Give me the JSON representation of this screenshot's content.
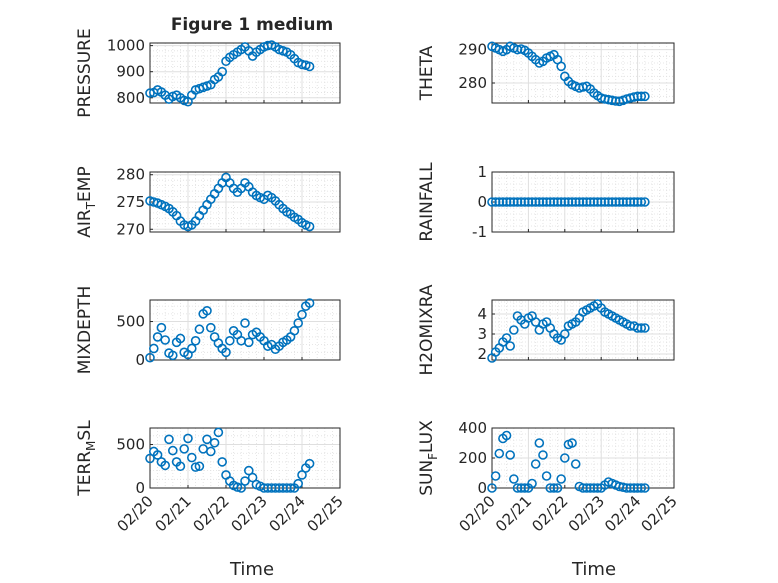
{
  "figure": {
    "title": "Figure 1 medium",
    "xlabel": "Time",
    "x_ticks": [
      "02/20",
      "02/21",
      "02/22",
      "02/23",
      "02/24",
      "02/25"
    ],
    "marker_color": "#0072BD",
    "grid_color": "#dfdfdf"
  },
  "chart_data": [
    {
      "type": "scatter",
      "ylabel": "PRESSURE",
      "ylim": [
        780,
        1010
      ],
      "y_ticks": [
        "800",
        "900",
        "1000"
      ],
      "y_tick_values": [
        800,
        900,
        1000
      ],
      "x": [
        20.0,
        20.1,
        20.2,
        20.3,
        20.4,
        20.5,
        20.6,
        20.7,
        20.8,
        20.9,
        21.0,
        21.1,
        21.2,
        21.3,
        21.4,
        21.5,
        21.6,
        21.7,
        21.8,
        21.9,
        22.0,
        22.1,
        22.2,
        22.3,
        22.4,
        22.5,
        22.6,
        22.7,
        22.8,
        22.9,
        23.0,
        23.1,
        23.2,
        23.3,
        23.4,
        23.5,
        23.6,
        23.7,
        23.8,
        23.9,
        24.0,
        24.1,
        24.2
      ],
      "y": [
        818,
        820,
        830,
        822,
        810,
        795,
        805,
        810,
        800,
        790,
        785,
        810,
        830,
        835,
        840,
        845,
        850,
        870,
        880,
        900,
        940,
        955,
        965,
        975,
        985,
        995,
        980,
        960,
        975,
        985,
        995,
        1000,
        1002,
        995,
        985,
        980,
        975,
        965,
        950,
        935,
        928,
        925,
        920
      ]
    },
    {
      "type": "scatter",
      "ylabel": "THETA",
      "ylim": [
        274,
        292
      ],
      "y_ticks": [
        "280",
        "290"
      ],
      "y_tick_values": [
        280,
        290
      ],
      "x": [
        20.0,
        20.1,
        20.2,
        20.3,
        20.4,
        20.5,
        20.6,
        20.7,
        20.8,
        20.9,
        21.0,
        21.1,
        21.2,
        21.3,
        21.4,
        21.5,
        21.6,
        21.7,
        21.8,
        21.9,
        22.0,
        22.1,
        22.2,
        22.3,
        22.4,
        22.5,
        22.6,
        22.7,
        22.8,
        22.9,
        23.0,
        23.1,
        23.2,
        23.3,
        23.4,
        23.5,
        23.6,
        23.7,
        23.8,
        23.9,
        24.0,
        24.1,
        24.2
      ],
      "y": [
        291,
        290.5,
        290,
        289.5,
        290,
        291,
        290.5,
        290,
        290.2,
        289.8,
        289,
        288,
        287,
        286,
        286.5,
        287.5,
        288,
        288.5,
        287,
        285,
        282,
        280.5,
        279.5,
        279,
        278.5,
        278.8,
        279,
        278.2,
        277,
        276.2,
        275.5,
        275.2,
        275,
        274.8,
        274.6,
        274.5,
        274.8,
        275.2,
        275.5,
        275.8,
        276,
        276,
        276
      ]
    },
    {
      "type": "scatter",
      "ylabel": "AIR_TEMP",
      "ylim": [
        269.5,
        280.5
      ],
      "y_ticks": [
        "270",
        "275",
        "280"
      ],
      "y_tick_values": [
        270,
        275,
        280
      ],
      "x": [
        20.0,
        20.1,
        20.2,
        20.3,
        20.4,
        20.5,
        20.6,
        20.7,
        20.8,
        20.9,
        21.0,
        21.1,
        21.2,
        21.3,
        21.4,
        21.5,
        21.6,
        21.7,
        21.8,
        21.9,
        22.0,
        22.1,
        22.2,
        22.3,
        22.4,
        22.5,
        22.6,
        22.7,
        22.8,
        22.9,
        23.0,
        23.1,
        23.2,
        23.3,
        23.4,
        23.5,
        23.6,
        23.7,
        23.8,
        23.9,
        24.0,
        24.1,
        24.2
      ],
      "y": [
        275.2,
        275,
        274.8,
        274.5,
        274.2,
        273.8,
        273.2,
        272.5,
        271.5,
        270.8,
        270.5,
        270.8,
        271.5,
        272.5,
        273.5,
        274.5,
        275.5,
        276.5,
        277.5,
        278.5,
        279.5,
        278.5,
        277.5,
        276.8,
        277.5,
        278.5,
        277.8,
        276.8,
        276.2,
        275.8,
        275.5,
        276.2,
        275.8,
        275.2,
        274.5,
        273.8,
        273.2,
        272.8,
        272.2,
        271.8,
        271.2,
        270.8,
        270.5
      ]
    },
    {
      "type": "scatter",
      "ylabel": "RAINFALL",
      "ylim": [
        -1,
        1
      ],
      "y_ticks": [
        "-1",
        "0",
        "1"
      ],
      "y_tick_values": [
        -1,
        0,
        1
      ],
      "x": [
        20.0,
        20.1,
        20.2,
        20.3,
        20.4,
        20.5,
        20.6,
        20.7,
        20.8,
        20.9,
        21.0,
        21.1,
        21.2,
        21.3,
        21.4,
        21.5,
        21.6,
        21.7,
        21.8,
        21.9,
        22.0,
        22.1,
        22.2,
        22.3,
        22.4,
        22.5,
        22.6,
        22.7,
        22.8,
        22.9,
        23.0,
        23.1,
        23.2,
        23.3,
        23.4,
        23.5,
        23.6,
        23.7,
        23.8,
        23.9,
        24.0,
        24.1,
        24.2
      ],
      "y": [
        0,
        0,
        0,
        0,
        0,
        0,
        0,
        0,
        0,
        0,
        0,
        0,
        0,
        0,
        0,
        0,
        0,
        0,
        0,
        0,
        0,
        0,
        0,
        0,
        0,
        0,
        0,
        0,
        0,
        0,
        0,
        0,
        0,
        0,
        0,
        0,
        0,
        0,
        0,
        0,
        0,
        0,
        0
      ]
    },
    {
      "type": "scatter",
      "ylabel": "MIXDEPTH",
      "ylim": [
        0,
        780
      ],
      "y_ticks": [
        "0",
        "500"
      ],
      "y_tick_values": [
        0,
        500
      ],
      "x": [
        20.0,
        20.1,
        20.2,
        20.3,
        20.4,
        20.5,
        20.6,
        20.7,
        20.8,
        20.9,
        21.0,
        21.1,
        21.2,
        21.3,
        21.4,
        21.5,
        21.6,
        21.7,
        21.8,
        21.9,
        22.0,
        22.1,
        22.2,
        22.3,
        22.4,
        22.5,
        22.6,
        22.7,
        22.8,
        22.9,
        23.0,
        23.1,
        23.2,
        23.3,
        23.4,
        23.5,
        23.6,
        23.7,
        23.8,
        23.9,
        24.0,
        24.1,
        24.2
      ],
      "y": [
        30,
        150,
        300,
        420,
        260,
        90,
        60,
        230,
        280,
        100,
        70,
        150,
        250,
        400,
        600,
        640,
        420,
        300,
        220,
        150,
        100,
        250,
        380,
        330,
        250,
        480,
        230,
        330,
        360,
        300,
        250,
        180,
        200,
        140,
        180,
        230,
        260,
        300,
        380,
        480,
        590,
        700,
        740
      ]
    },
    {
      "type": "scatter",
      "ylabel": "H2OMIXRA",
      "ylim": [
        1.7,
        4.7
      ],
      "y_ticks": [
        "2",
        "3",
        "4"
      ],
      "y_tick_values": [
        2,
        3,
        4
      ],
      "x": [
        20.0,
        20.1,
        20.2,
        20.3,
        20.4,
        20.5,
        20.6,
        20.7,
        20.8,
        20.9,
        21.0,
        21.1,
        21.2,
        21.3,
        21.4,
        21.5,
        21.6,
        21.7,
        21.8,
        21.9,
        22.0,
        22.1,
        22.2,
        22.3,
        22.4,
        22.5,
        22.6,
        22.7,
        22.8,
        22.9,
        23.0,
        23.1,
        23.2,
        23.3,
        23.4,
        23.5,
        23.6,
        23.7,
        23.8,
        23.9,
        24.0,
        24.1,
        24.2
      ],
      "y": [
        1.8,
        2.1,
        2.3,
        2.6,
        2.8,
        2.4,
        3.2,
        3.9,
        3.7,
        3.5,
        3.8,
        3.9,
        3.6,
        3.2,
        3.5,
        3.6,
        3.3,
        3.0,
        2.8,
        2.7,
        3.0,
        3.4,
        3.5,
        3.6,
        3.8,
        4.1,
        4.2,
        4.3,
        4.4,
        4.5,
        4.3,
        4.1,
        4.0,
        3.9,
        3.8,
        3.7,
        3.6,
        3.5,
        3.4,
        3.4,
        3.3,
        3.3,
        3.3
      ]
    },
    {
      "type": "scatter",
      "ylabel": "TERR_MSL",
      "ylim": [
        0,
        690
      ],
      "y_ticks": [
        "0",
        "500"
      ],
      "y_tick_values": [
        0,
        500
      ],
      "x": [
        20.0,
        20.1,
        20.2,
        20.3,
        20.4,
        20.5,
        20.6,
        20.7,
        20.8,
        20.9,
        21.0,
        21.1,
        21.2,
        21.3,
        21.4,
        21.5,
        21.6,
        21.7,
        21.8,
        21.9,
        22.0,
        22.1,
        22.2,
        22.3,
        22.4,
        22.5,
        22.6,
        22.7,
        22.8,
        22.9,
        23.0,
        23.1,
        23.2,
        23.3,
        23.4,
        23.5,
        23.6,
        23.7,
        23.8,
        23.9,
        24.0,
        24.1,
        24.2
      ],
      "y": [
        340,
        420,
        380,
        300,
        260,
        560,
        430,
        300,
        250,
        450,
        570,
        350,
        240,
        250,
        450,
        560,
        420,
        520,
        640,
        300,
        150,
        80,
        30,
        10,
        0,
        80,
        200,
        120,
        40,
        20,
        0,
        0,
        0,
        0,
        0,
        0,
        0,
        0,
        0,
        50,
        150,
        230,
        280
      ]
    },
    {
      "type": "scatter",
      "ylabel": "SUN_FLUX",
      "ylim": [
        0,
        400
      ],
      "y_ticks": [
        "0",
        "200",
        "400"
      ],
      "y_tick_values": [
        0,
        200,
        400
      ],
      "x": [
        20.0,
        20.1,
        20.2,
        20.3,
        20.4,
        20.5,
        20.6,
        20.7,
        20.8,
        20.9,
        21.0,
        21.1,
        21.2,
        21.3,
        21.4,
        21.5,
        21.6,
        21.7,
        21.8,
        21.9,
        22.0,
        22.1,
        22.2,
        22.3,
        22.4,
        22.5,
        22.6,
        22.7,
        22.8,
        22.9,
        23.0,
        23.1,
        23.2,
        23.3,
        23.4,
        23.5,
        23.6,
        23.7,
        23.8,
        23.9,
        24.0,
        24.1,
        24.2
      ],
      "y": [
        0,
        80,
        230,
        330,
        350,
        220,
        60,
        0,
        0,
        0,
        0,
        30,
        160,
        300,
        220,
        80,
        0,
        0,
        0,
        60,
        200,
        290,
        300,
        160,
        10,
        0,
        0,
        0,
        0,
        0,
        0,
        20,
        40,
        30,
        20,
        10,
        5,
        0,
        0,
        0,
        0,
        0,
        0
      ]
    }
  ]
}
